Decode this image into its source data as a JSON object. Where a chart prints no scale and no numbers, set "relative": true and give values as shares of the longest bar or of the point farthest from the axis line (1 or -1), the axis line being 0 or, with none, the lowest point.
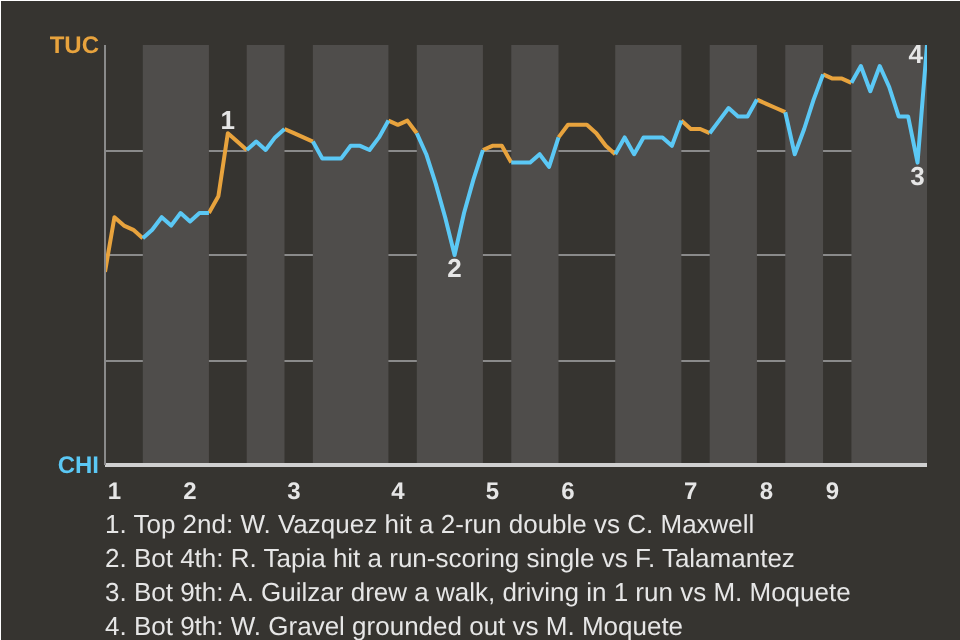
{
  "chart_data": {
    "type": "line",
    "relative": true,
    "categories": [
      null,
      "1",
      null,
      null,
      null,
      null,
      null,
      null,
      null,
      "2",
      null,
      null,
      null,
      null,
      null,
      null,
      null,
      null,
      null,
      null,
      "3",
      null,
      null,
      null,
      null,
      null,
      null,
      null,
      null,
      null,
      null,
      "4",
      null,
      null,
      null,
      null,
      null,
      null,
      null,
      null,
      null,
      "5",
      null,
      null,
      null,
      null,
      null,
      null,
      null,
      "6",
      null,
      null,
      null,
      null,
      null,
      null,
      null,
      null,
      null,
      null,
      null,
      null,
      "7",
      null,
      null,
      null,
      null,
      null,
      null,
      null,
      "8",
      null,
      null,
      null,
      null,
      null,
      null,
      "9",
      null,
      null,
      null,
      null,
      null,
      null,
      null,
      null,
      null,
      null
    ],
    "legend": "left",
    "grid": "y",
    "series": [
      {
        "name": "TUC",
        "color": "#e8a33d",
        "values": [
          0.46,
          0.59,
          0.57,
          0.56,
          0.54,
          null,
          null,
          null,
          null,
          null,
          null,
          0.6,
          0.64,
          0.79,
          0.77,
          0.75,
          null,
          null,
          null,
          0.8,
          0.79,
          0.78,
          0.77,
          null,
          null,
          null,
          null,
          null,
          null,
          null,
          0.82,
          0.81,
          0.82,
          0.79,
          null,
          null,
          null,
          null,
          null,
          null,
          0.75,
          0.76,
          0.76,
          0.72,
          null,
          null,
          null,
          null,
          0.78,
          0.81,
          0.81,
          0.81,
          0.79,
          0.76,
          0.74,
          null,
          null,
          null,
          null,
          null,
          null,
          0.82,
          0.8,
          0.8,
          0.79,
          null,
          null,
          null,
          null,
          0.87,
          0.86,
          0.85,
          0.84,
          null,
          null,
          null,
          0.93,
          0.92,
          0.92,
          0.91,
          null,
          null,
          null,
          null,
          null,
          null,
          null,
          null
        ]
      },
      {
        "name": "CHI",
        "color": "#5bc8f5",
        "values": [
          null,
          null,
          null,
          null,
          0.54,
          0.56,
          0.59,
          0.57,
          0.6,
          0.58,
          0.6,
          0.6,
          null,
          null,
          null,
          0.75,
          0.77,
          0.75,
          0.78,
          0.8,
          null,
          null,
          0.77,
          0.73,
          0.73,
          0.73,
          0.76,
          0.76,
          0.75,
          0.78,
          0.82,
          null,
          null,
          0.79,
          0.74,
          0.67,
          0.59,
          0.5,
          0.6,
          0.68,
          0.75,
          null,
          null,
          0.72,
          0.72,
          0.72,
          0.74,
          0.71,
          0.78,
          null,
          null,
          null,
          null,
          null,
          0.74,
          0.78,
          0.74,
          0.78,
          0.78,
          0.78,
          0.76,
          0.82,
          null,
          null,
          0.79,
          0.82,
          0.85,
          0.83,
          0.83,
          0.87,
          null,
          null,
          0.84,
          0.74,
          0.8,
          0.87,
          0.93,
          null,
          null,
          0.91,
          0.95,
          0.89,
          0.95,
          0.9,
          0.83,
          0.83,
          0.72,
          1
        ]
      }
    ],
    "annotations": [
      {
        "text": "1",
        "y": 0.79
      },
      {
        "text": "2",
        "y": 0.5
      },
      {
        "text": "3",
        "y": 0.72
      },
      {
        "text": "4",
        "y": 1
      },
      "1. Top 2nd: W. Vazquez hit a 2-run double vs C. Maxwell",
      "2. Bot 4th: R. Tapia hit a run-scoring single vs F. Talamantez",
      "3. Bot 9th: A. Guilzar drew a walk, driving in 1 run vs M. Moquete",
      "4. Bot 9th: W. Gravel grounded out vs M. Moquete"
    ]
  }
}
